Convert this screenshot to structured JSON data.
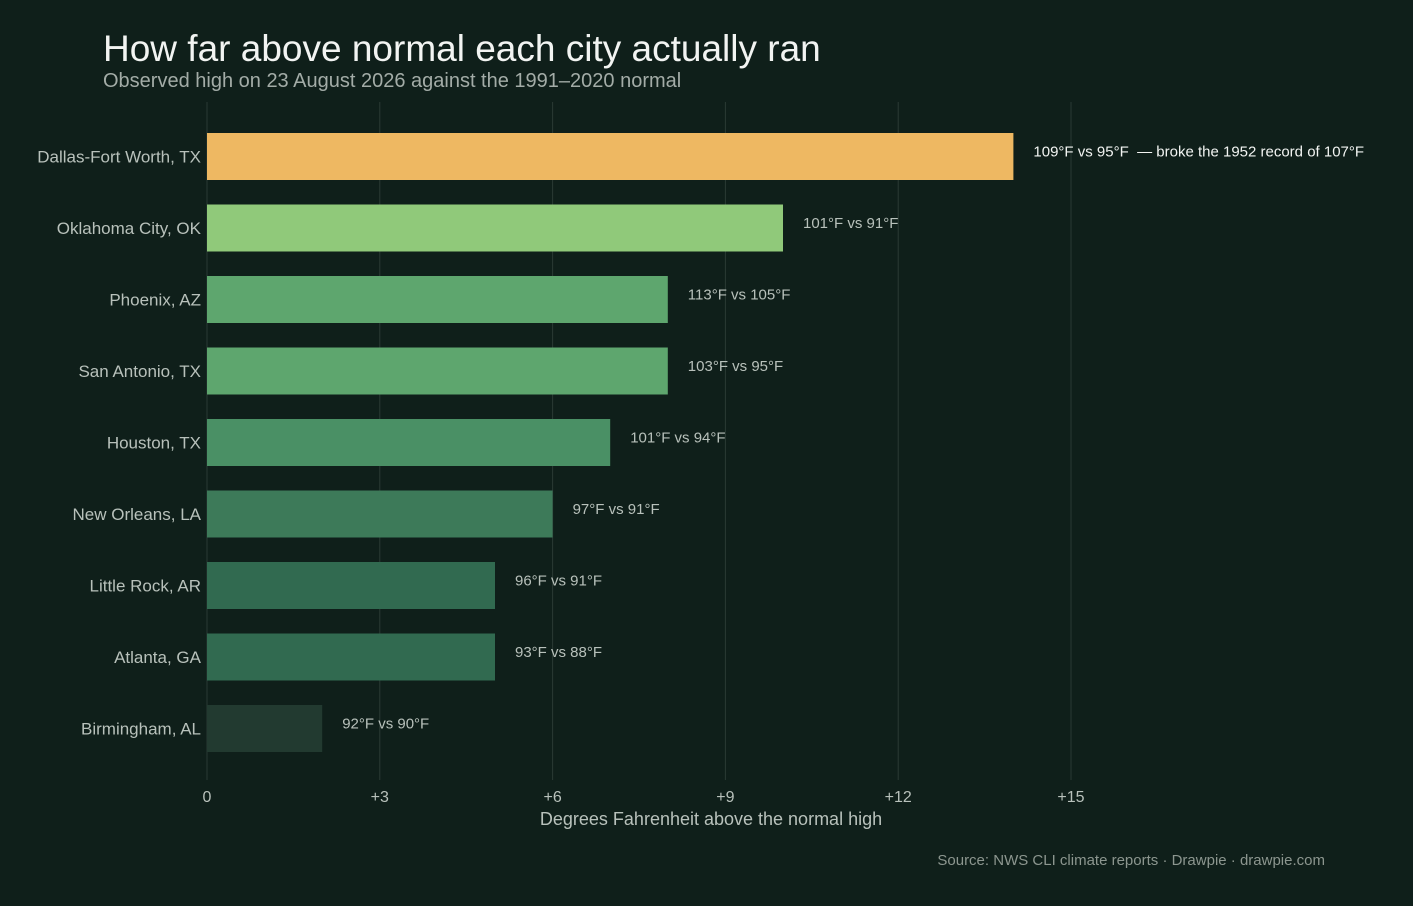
{
  "title": "How far above normal each city actually ran",
  "subtitle": "Observed high on 23 August 2026 against the 1991–2020 normal",
  "source": "Source: NWS CLI climate reports  ·  Drawpie · drawpie.com",
  "colors": {
    "background": "#0f1f1a",
    "grid": "#2a3a34",
    "highlight": "#eeb862",
    "label_highlight": "#f2f4f2",
    "label_default": "#b8c1bb",
    "tick": "#b8c1bb",
    "category": "#b8c1bb"
  },
  "chart_data": {
    "type": "bar",
    "orientation": "horizontal",
    "xlabel": "Degrees Fahrenheit above the normal high",
    "xlim": [
      0,
      15
    ],
    "x_ticks": [
      {
        "value": 0,
        "label": "0"
      },
      {
        "value": 3,
        "label": "+3"
      },
      {
        "value": 6,
        "label": "+6"
      },
      {
        "value": 9,
        "label": "+9"
      },
      {
        "value": 12,
        "label": "+12"
      },
      {
        "value": 15,
        "label": "+15"
      }
    ],
    "grid": true,
    "bars": [
      {
        "category": "Dallas-Fort Worth, TX",
        "value": 14,
        "observed": "109°F",
        "normal": "95°F",
        "label": "109°F vs 95°F  — broke the 1952 record of 107°F",
        "color": "#eeb862",
        "highlight": true
      },
      {
        "category": "Oklahoma City, OK",
        "value": 10,
        "observed": "101°F",
        "normal": "91°F",
        "label": "101°F vs 91°F",
        "color": "#90c97a",
        "highlight": false
      },
      {
        "category": "Phoenix, AZ",
        "value": 8,
        "observed": "113°F",
        "normal": "105°F",
        "label": "113°F vs 105°F",
        "color": "#5ea66e",
        "highlight": false
      },
      {
        "category": "San Antonio, TX",
        "value": 8,
        "observed": "103°F",
        "normal": "95°F",
        "label": "103°F vs 95°F",
        "color": "#5ea66e",
        "highlight": false
      },
      {
        "category": "Houston, TX",
        "value": 7,
        "observed": "101°F",
        "normal": "94°F",
        "label": "101°F vs 94°F",
        "color": "#4a9065",
        "highlight": false
      },
      {
        "category": "New Orleans, LA",
        "value": 6,
        "observed": "97°F",
        "normal": "91°F",
        "label": "97°F vs 91°F",
        "color": "#3d7a59",
        "highlight": false
      },
      {
        "category": "Little Rock, AR",
        "value": 5,
        "observed": "96°F",
        "normal": "91°F",
        "label": "96°F vs 91°F",
        "color": "#316a50",
        "highlight": false
      },
      {
        "category": "Atlanta, GA",
        "value": 5,
        "observed": "93°F",
        "normal": "88°F",
        "label": "93°F vs 88°F",
        "color": "#316a50",
        "highlight": false
      },
      {
        "category": "Birmingham, AL",
        "value": 2,
        "observed": "92°F",
        "normal": "90°F",
        "label": "92°F vs 90°F",
        "color": "#223a30",
        "highlight": false
      }
    ]
  }
}
